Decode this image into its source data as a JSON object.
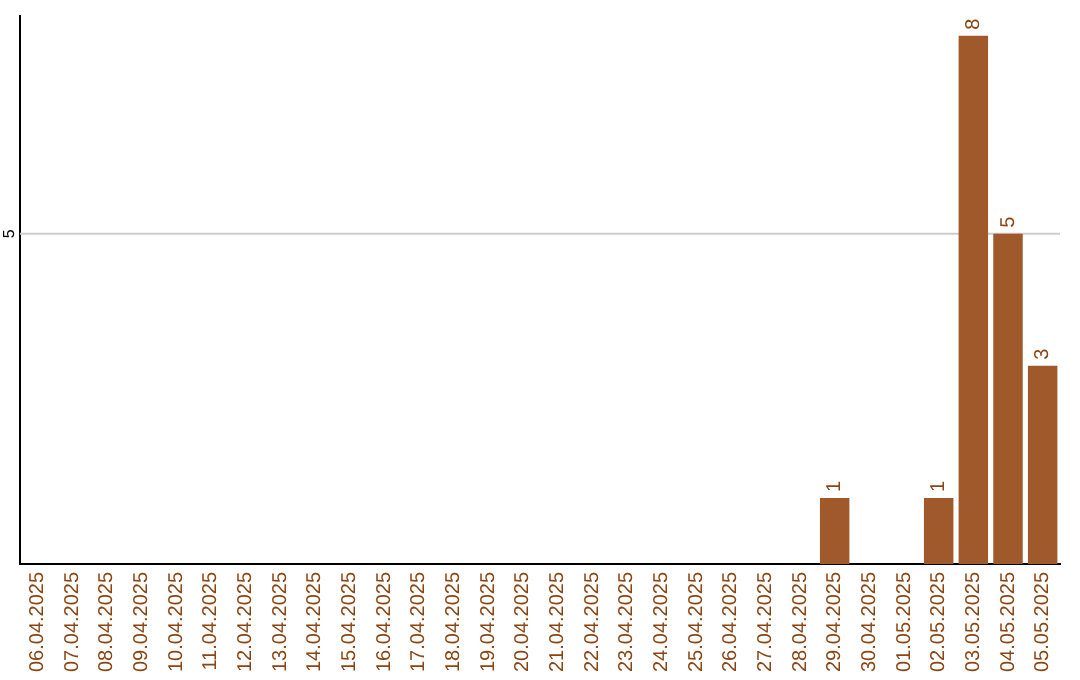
{
  "chart_data": {
    "type": "bar",
    "categories": [
      "06.04.2025",
      "07.04.2025",
      "08.04.2025",
      "09.04.2025",
      "10.04.2025",
      "11.04.2025",
      "12.04.2025",
      "13.04.2025",
      "14.04.2025",
      "15.04.2025",
      "16.04.2025",
      "17.04.2025",
      "18.04.2025",
      "19.04.2025",
      "20.04.2025",
      "21.04.2025",
      "22.04.2025",
      "23.04.2025",
      "24.04.2025",
      "25.04.2025",
      "26.04.2025",
      "27.04.2025",
      "28.04.2025",
      "29.04.2025",
      "30.04.2025",
      "01.05.2025",
      "02.05.2025",
      "03.05.2025",
      "04.05.2025",
      "05.05.2025"
    ],
    "values": [
      null,
      null,
      null,
      null,
      null,
      null,
      null,
      null,
      null,
      null,
      null,
      null,
      null,
      null,
      null,
      null,
      null,
      null,
      null,
      null,
      null,
      null,
      null,
      1,
      null,
      null,
      1,
      8,
      5,
      3
    ],
    "data_labels": true,
    "color": "#a0592a",
    "ylim": [
      0,
      8.3
    ],
    "ref_lines": [
      {
        "axis": "y",
        "value": 5,
        "label": "5",
        "color": "#cccccc"
      }
    ]
  }
}
